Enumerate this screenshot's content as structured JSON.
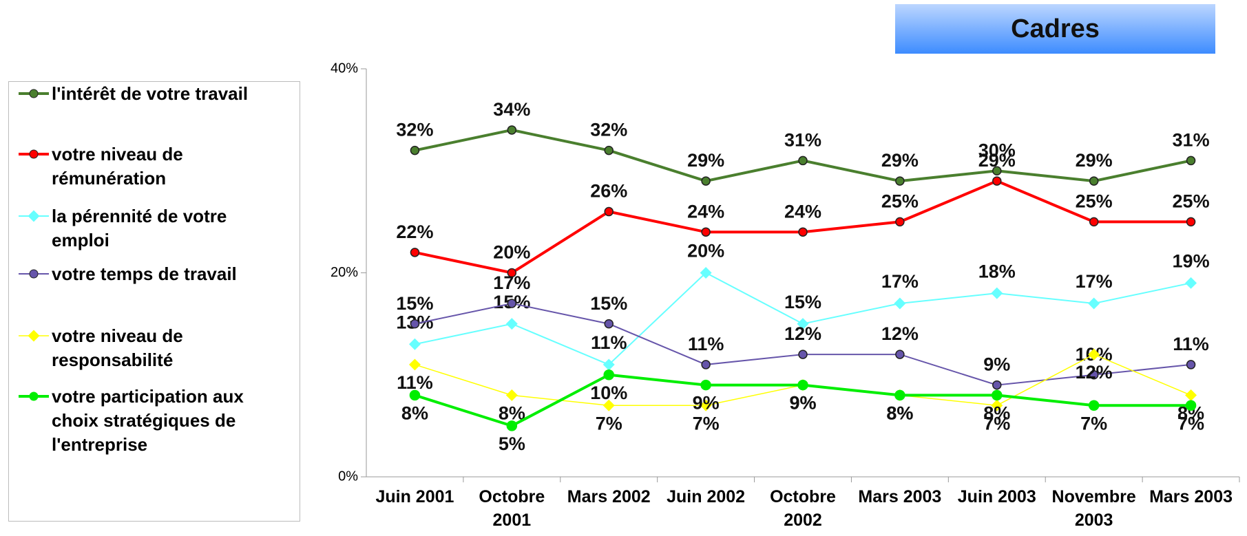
{
  "chart_data": {
    "type": "line",
    "title": "Cadres",
    "categories": [
      "Juin 2001",
      "Octobre 2001",
      "Mars 2002",
      "Juin 2002",
      "Octobre 2002",
      "Mars 2003",
      "Juin 2003",
      "Novembre 2003",
      "Mars 2003"
    ],
    "ylim": [
      0,
      40
    ],
    "yticks": [
      {
        "value": 0,
        "label": "0%"
      },
      {
        "value": 20,
        "label": "20%"
      },
      {
        "value": 40,
        "label": "40%"
      }
    ],
    "series": [
      {
        "name": "l'intérêt de votre travail",
        "color": "#4a7f2e",
        "values": [
          32,
          34,
          32,
          29,
          31,
          29,
          30,
          29,
          31
        ],
        "value_labels": [
          "32%",
          "34%",
          "32%",
          "29%",
          "31%",
          "29%",
          "30%",
          "29%",
          "31%"
        ]
      },
      {
        "name": "votre niveau de rémunération",
        "color": "#ff0000",
        "values": [
          22,
          20,
          26,
          24,
          24,
          25,
          29,
          25,
          25
        ],
        "value_labels": [
          "22%",
          "20%",
          "26%",
          "24%",
          "24%",
          "25%",
          "29%",
          "25%",
          "25%"
        ]
      },
      {
        "name": "la pérennité de votre emploi",
        "color": "#66ffff",
        "values": [
          13,
          15,
          11,
          20,
          15,
          17,
          18,
          17,
          19
        ],
        "value_labels": [
          "13%",
          "15%",
          "11%",
          "20%",
          "15%",
          "17%",
          "18%",
          "17%",
          "19%"
        ]
      },
      {
        "name": "votre temps de travail",
        "color": "#6655aa",
        "values": [
          15,
          17,
          15,
          11,
          12,
          12,
          9,
          10,
          11
        ],
        "value_labels": [
          "15%",
          "17%",
          "15%",
          "11%",
          "12%",
          "12%",
          "9%",
          "10%",
          "11%"
        ]
      },
      {
        "name": "votre niveau de responsabilité",
        "color": "#ffff00",
        "values": [
          11,
          8,
          7,
          7,
          9,
          8,
          7,
          12,
          8
        ],
        "value_labels": [
          "11%",
          "8%",
          "7%",
          "7%",
          "9%",
          "8%",
          "7%",
          "12%",
          "8%"
        ]
      },
      {
        "name": "votre participation aux choix stratégiques de l'entreprise",
        "color": "#00ee00",
        "values": [
          8,
          5,
          10,
          9,
          9,
          8,
          8,
          7,
          7
        ],
        "value_labels": [
          "8%",
          "5%",
          "10%",
          "9%",
          "9%",
          "8%",
          "8%",
          "7%",
          "7%"
        ]
      }
    ]
  }
}
